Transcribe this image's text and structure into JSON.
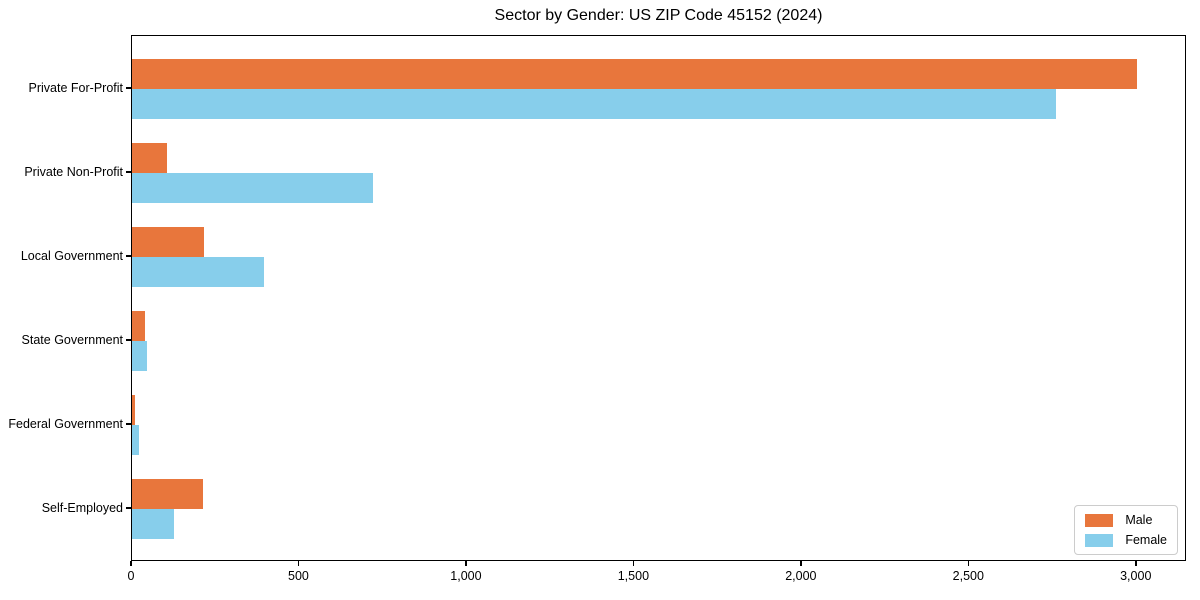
{
  "chart_data": {
    "type": "bar",
    "orientation": "horizontal",
    "title": "Sector by Gender: US ZIP Code 45152 (2024)",
    "categories": [
      "Private For-Profit",
      "Private Non-Profit",
      "Local Government",
      "State Government",
      "Federal Government",
      "Self-Employed"
    ],
    "series": [
      {
        "name": "Male",
        "color": "#E8763C",
        "values": [
          3000,
          105,
          215,
          40,
          10,
          212
        ]
      },
      {
        "name": "Female",
        "color": "#87CEEB",
        "values": [
          2760,
          720,
          395,
          45,
          20,
          126
        ]
      }
    ],
    "xlabel": "",
    "ylabel": "",
    "xlim": [
      0,
      3150
    ],
    "xticks": [
      {
        "value": 0,
        "label": "0"
      },
      {
        "value": 500,
        "label": "500"
      },
      {
        "value": 1000,
        "label": "1,000"
      },
      {
        "value": 1500,
        "label": "1,500"
      },
      {
        "value": 2000,
        "label": "2,000"
      },
      {
        "value": 2500,
        "label": "2,500"
      },
      {
        "value": 3000,
        "label": "3,000"
      }
    ],
    "grid": false,
    "legend_position": "lower right",
    "colors": {
      "male": "#E8763C",
      "female": "#87CEEB",
      "axis": "#000000",
      "legend_border": "#cccccc",
      "background": "#ffffff"
    }
  }
}
